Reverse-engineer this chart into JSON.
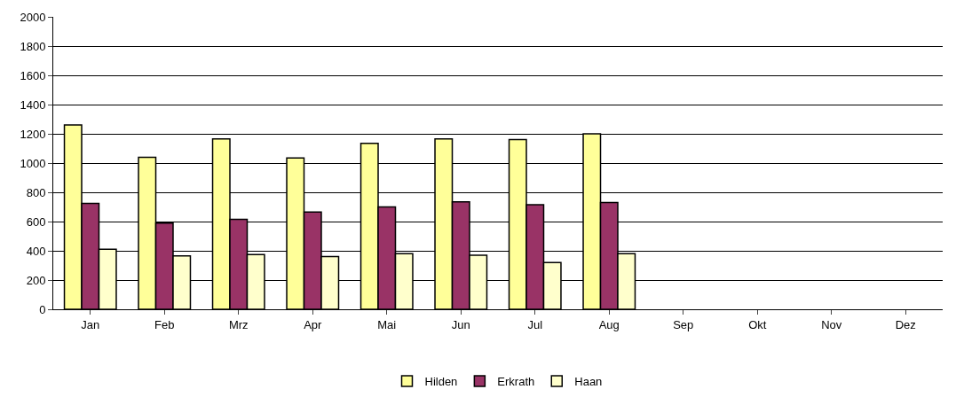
{
  "chart_data": {
    "type": "bar",
    "categories": [
      "Jan",
      "Feb",
      "Mrz",
      "Apr",
      "Mai",
      "Jun",
      "Jul",
      "Aug",
      "Sep",
      "Okt",
      "Nov",
      "Dez"
    ],
    "series": [
      {
        "name": "Hilden",
        "color": "#ffff99",
        "values": [
          1260,
          1040,
          1165,
          1035,
          1135,
          1165,
          1160,
          1200,
          null,
          null,
          null,
          null
        ]
      },
      {
        "name": "Erkrath",
        "color": "#993366",
        "values": [
          725,
          590,
          615,
          665,
          700,
          735,
          715,
          730,
          null,
          null,
          null,
          null
        ]
      },
      {
        "name": "Haan",
        "color": "#ffffcc",
        "values": [
          410,
          365,
          375,
          360,
          380,
          370,
          320,
          380,
          null,
          null,
          null,
          null
        ]
      }
    ],
    "ylim": [
      0,
      2000
    ],
    "yticks": [
      0,
      200,
      400,
      600,
      800,
      1000,
      1200,
      1400,
      1600,
      1800,
      2000
    ],
    "grid": "y",
    "legend": "bottom"
  }
}
